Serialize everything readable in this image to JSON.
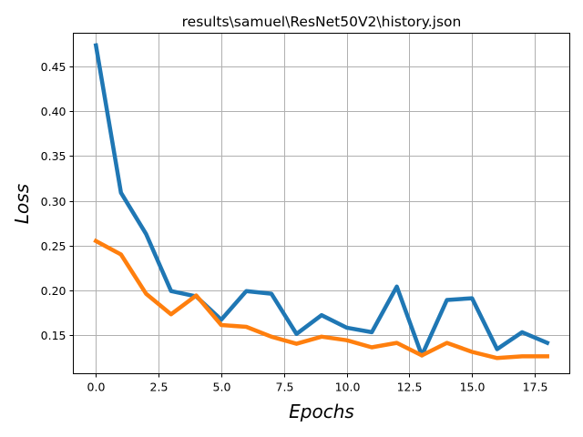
{
  "chart_data": {
    "type": "line",
    "title": "results\\samuel\\ResNet50V2\\history.json",
    "xlabel": "Epochs",
    "ylabel": "Loss",
    "xlim": [
      -0.9,
      18.9
    ],
    "ylim": [
      0.1065,
      0.4875
    ],
    "grid": true,
    "x": [
      0,
      1,
      2,
      3,
      4,
      5,
      6,
      7,
      8,
      9,
      10,
      11,
      12,
      13,
      14,
      15,
      16,
      17,
      18
    ],
    "x_ticks": [
      "0.0",
      "2.5",
      "5.0",
      "7.5",
      "10.0",
      "12.5",
      "15.0",
      "17.5"
    ],
    "x_tick_values": [
      0,
      2.5,
      5,
      7.5,
      10,
      12.5,
      15,
      17.5
    ],
    "y_ticks": [
      "0.15",
      "0.20",
      "0.25",
      "0.30",
      "0.35",
      "0.40",
      "0.45"
    ],
    "y_tick_values": [
      0.15,
      0.2,
      0.25,
      0.3,
      0.35,
      0.4,
      0.45
    ],
    "series": [
      {
        "color": "#1f77b4",
        "values": [
          0.474,
          0.309,
          0.263,
          0.199,
          0.193,
          0.167,
          0.199,
          0.196,
          0.151,
          0.172,
          0.158,
          0.153,
          0.204,
          0.127,
          0.189,
          0.191,
          0.134,
          0.153,
          0.141
        ]
      },
      {
        "color": "#ff7f0e",
        "values": [
          0.255,
          0.24,
          0.196,
          0.173,
          0.194,
          0.161,
          0.159,
          0.148,
          0.14,
          0.148,
          0.144,
          0.136,
          0.141,
          0.127,
          0.141,
          0.131,
          0.124,
          0.126,
          0.126
        ]
      }
    ]
  }
}
